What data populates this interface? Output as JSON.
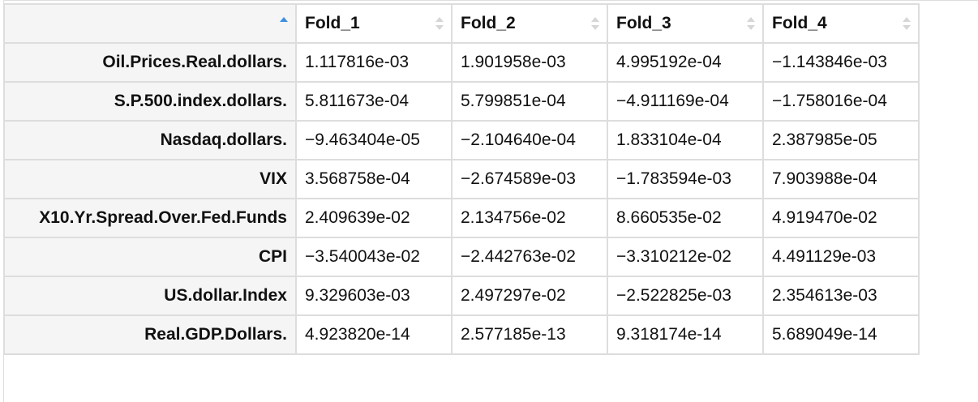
{
  "table": {
    "columns": [
      "Fold_1",
      "Fold_2",
      "Fold_3",
      "Fold_4"
    ],
    "rows": [
      {
        "name": "Oil.Prices.Real.dollars.",
        "values": [
          "1.117816e-03",
          "1.901958e-03",
          "4.995192e-04",
          "−1.143846e-03"
        ]
      },
      {
        "name": "S.P.500.index.dollars.",
        "values": [
          "5.811673e-04",
          "5.799851e-04",
          "−4.911169e-04",
          "−1.758016e-04"
        ]
      },
      {
        "name": "Nasdaq.dollars.",
        "values": [
          "−9.463404e-05",
          "−2.104640e-04",
          "1.833104e-04",
          "2.387985e-05"
        ]
      },
      {
        "name": "VIX",
        "values": [
          "3.568758e-04",
          "−2.674589e-03",
          "−1.783594e-03",
          "7.903988e-04"
        ]
      },
      {
        "name": "X10.Yr.Spread.Over.Fed.Funds",
        "values": [
          "2.409639e-02",
          "2.134756e-02",
          "8.660535e-02",
          "4.919470e-02"
        ]
      },
      {
        "name": "CPI",
        "values": [
          "−3.540043e-02",
          "−2.442763e-02",
          "−3.310212e-02",
          "4.491129e-03"
        ]
      },
      {
        "name": "US.dollar.Index",
        "values": [
          "9.329603e-03",
          "2.497297e-02",
          "−2.522825e-03",
          "2.354613e-03"
        ]
      },
      {
        "name": "Real.GDP.Dollars.",
        "values": [
          "4.923820e-14",
          "2.577185e-13",
          "9.318174e-14",
          "5.689049e-14"
        ]
      }
    ]
  },
  "icons": {
    "corner_sort": "sort-ascending-icon",
    "column_sort": "sort-both-icon"
  },
  "colors": {
    "sort_active": "#3d8fe0",
    "sort_inactive": "#d6d6d6",
    "row_header_bg": "#f5f5f5",
    "border": "#dddddd"
  }
}
